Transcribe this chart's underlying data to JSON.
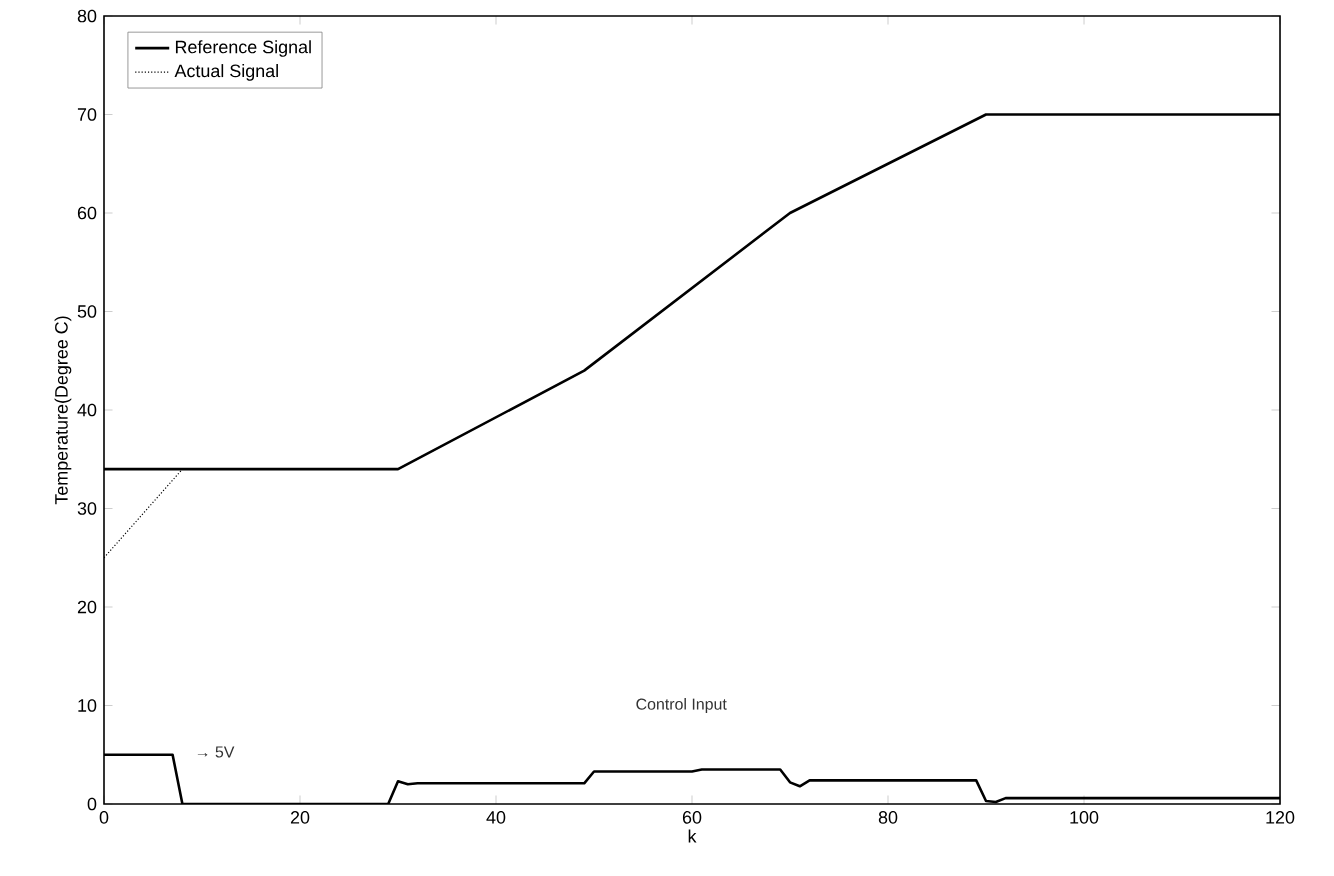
{
  "chart_data": {
    "type": "line",
    "xlabel": "k",
    "ylabel": "Temperature(Degree C)",
    "xlim": [
      0,
      120
    ],
    "ylim": [
      0,
      80
    ],
    "xticks": [
      0,
      20,
      40,
      60,
      80,
      100,
      120
    ],
    "yticks": [
      0,
      10,
      20,
      30,
      40,
      50,
      60,
      70,
      80
    ],
    "grid": false,
    "legend": "top left",
    "marker": "none",
    "series": [
      {
        "name": "Reference Signal",
        "color": "#000000",
        "line_style": "solid",
        "x": [
          0,
          30,
          49,
          70,
          90,
          120
        ],
        "values": [
          34,
          34,
          44,
          60,
          70,
          70
        ]
      },
      {
        "name": "Actual Signal",
        "color": "#000000",
        "line_style": "dotted",
        "x": [
          0,
          8
        ],
        "values": [
          25,
          34
        ]
      },
      {
        "color": "#000000",
        "line_style": "solid",
        "x": [
          0,
          7,
          8,
          29,
          30,
          31,
          32,
          49,
          50,
          60,
          61,
          69,
          70,
          71,
          72,
          89,
          90,
          91,
          92,
          120
        ],
        "values": [
          5,
          5,
          0,
          0,
          2.3,
          2.0,
          2.1,
          2.1,
          3.3,
          3.3,
          3.5,
          3.5,
          2.2,
          1.8,
          2.4,
          2.4,
          0.3,
          0.2,
          0.6,
          0.6
        ]
      }
    ],
    "annotations": [
      "→ 5V",
      "Control Input"
    ]
  }
}
